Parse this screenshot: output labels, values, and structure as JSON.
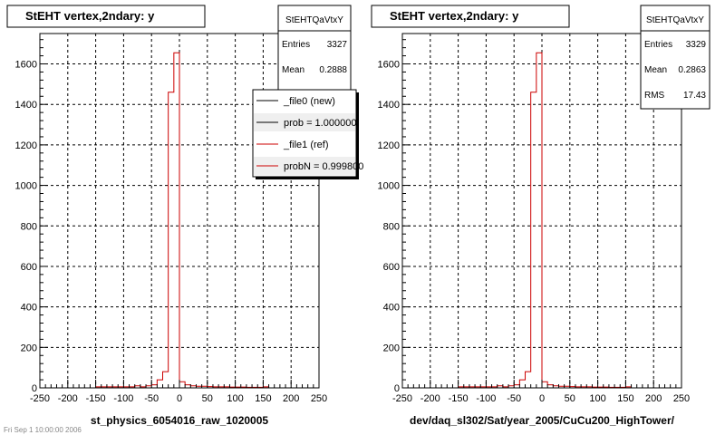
{
  "footer_text": "Fri Sep 1 10:00:00 2006",
  "chart_data": [
    {
      "type": "bar",
      "title": "StEHT  vertex,2ndary: y",
      "xlabel": "st_physics_6054016_raw_1020005",
      "xlim": [
        -250,
        250
      ],
      "ylim": [
        0,
        1750
      ],
      "xticks": [
        -250,
        -200,
        -150,
        -100,
        -50,
        0,
        50,
        100,
        150,
        200,
        250
      ],
      "yticks": [
        0,
        200,
        400,
        600,
        800,
        1000,
        1200,
        1400,
        1600
      ],
      "grid": true,
      "bin_width": 10,
      "stats": {
        "name": "StEHTQaVtxY",
        "rows": [
          {
            "label": "Entries",
            "value": "3327"
          },
          {
            "label": "Mean",
            "value": "0.2888"
          }
        ]
      },
      "legend": {
        "placement": "top-right",
        "entries": [
          {
            "label": "_file0 (new)",
            "color": "#000000"
          },
          {
            "label": "prob = 1.000000",
            "color": "#000000"
          },
          {
            "label": "_file1 (ref)",
            "color": "#cc0000"
          },
          {
            "label": "probN = 0.999800",
            "color": "#cc0000"
          }
        ]
      },
      "series": [
        {
          "color": "#cc0000",
          "x": [
            -245,
            -235,
            -225,
            -215,
            -205,
            -195,
            -185,
            -175,
            -165,
            -155,
            -145,
            -135,
            -125,
            -115,
            -105,
            -95,
            -85,
            -75,
            -65,
            -55,
            -45,
            -35,
            -25,
            -15,
            -5,
            5,
            15,
            25,
            35,
            45,
            55,
            65,
            75,
            85,
            95,
            105,
            115,
            125,
            135,
            145,
            155,
            165,
            175,
            185,
            195,
            205,
            215,
            225,
            235,
            245
          ],
          "values": [
            0,
            0,
            0,
            0,
            0,
            0,
            0,
            0,
            0,
            0,
            5,
            5,
            5,
            5,
            5,
            5,
            5,
            10,
            5,
            10,
            15,
            40,
            80,
            1460,
            1655,
            30,
            15,
            10,
            8,
            8,
            6,
            5,
            5,
            5,
            4,
            4,
            4,
            3,
            3,
            3,
            5,
            0,
            0,
            0,
            0,
            0,
            0,
            0,
            0,
            0
          ]
        }
      ]
    },
    {
      "type": "bar",
      "title": "StEHT  vertex,2ndary: y",
      "xlabel": "dev/daq_sl302/Sat/year_2005/CuCu200_HighTower/",
      "xlim": [
        -250,
        250
      ],
      "ylim": [
        0,
        1750
      ],
      "xticks": [
        -250,
        -200,
        -150,
        -100,
        -50,
        0,
        50,
        100,
        150,
        200,
        250
      ],
      "yticks": [
        0,
        200,
        400,
        600,
        800,
        1000,
        1200,
        1400,
        1600
      ],
      "grid": true,
      "bin_width": 10,
      "stats": {
        "name": "StEHTQaVtxY",
        "rows": [
          {
            "label": "Entries",
            "value": "3329"
          },
          {
            "label": "Mean",
            "value": "0.2863"
          },
          {
            "label": "RMS",
            "value": "17.43"
          }
        ]
      },
      "series": [
        {
          "color": "#cc0000",
          "x": [
            -245,
            -235,
            -225,
            -215,
            -205,
            -195,
            -185,
            -175,
            -165,
            -155,
            -145,
            -135,
            -125,
            -115,
            -105,
            -95,
            -85,
            -75,
            -65,
            -55,
            -45,
            -35,
            -25,
            -15,
            -5,
            5,
            15,
            25,
            35,
            45,
            55,
            65,
            75,
            85,
            95,
            105,
            115,
            125,
            135,
            145,
            155,
            165,
            175,
            185,
            195,
            205,
            215,
            225,
            235,
            245
          ],
          "values": [
            0,
            0,
            0,
            0,
            0,
            0,
            0,
            0,
            0,
            0,
            5,
            5,
            5,
            5,
            5,
            5,
            5,
            10,
            5,
            10,
            15,
            40,
            80,
            1460,
            1655,
            30,
            15,
            10,
            8,
            8,
            6,
            5,
            5,
            5,
            4,
            4,
            4,
            3,
            3,
            3,
            5,
            0,
            0,
            0,
            0,
            0,
            0,
            0,
            0,
            0
          ]
        }
      ]
    }
  ]
}
